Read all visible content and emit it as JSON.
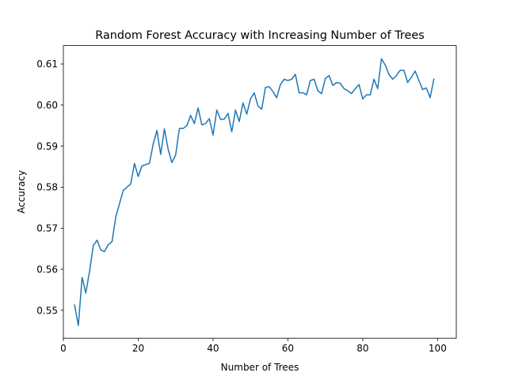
{
  "chart_data": {
    "type": "line",
    "title": "Random Forest Accuracy with Increasing Number of Trees",
    "xlabel": "Number of Trees",
    "ylabel": "Accuracy",
    "xlim": [
      0,
      105
    ],
    "ylim": [
      0.5432,
      0.6145
    ],
    "xticks": [
      0,
      20,
      40,
      60,
      80,
      100
    ],
    "yticks": [
      0.55,
      0.56,
      0.57,
      0.58,
      0.59,
      0.6,
      0.61
    ],
    "ytick_labels": [
      "0.55",
      "0.56",
      "0.57",
      "0.58",
      "0.59",
      "0.60",
      "0.61"
    ],
    "grid": false,
    "line_color": "#1f77b4",
    "x": [
      3,
      4,
      5,
      6,
      7,
      8,
      9,
      10,
      11,
      12,
      13,
      14,
      15,
      16,
      17,
      18,
      19,
      20,
      21,
      22,
      23,
      24,
      25,
      26,
      27,
      28,
      29,
      30,
      31,
      32,
      33,
      34,
      35,
      36,
      37,
      38,
      39,
      40,
      41,
      42,
      43,
      44,
      45,
      46,
      47,
      48,
      49,
      50,
      51,
      52,
      53,
      54,
      55,
      56,
      57,
      58,
      59,
      60,
      61,
      62,
      63,
      64,
      65,
      66,
      67,
      68,
      69,
      70,
      71,
      72,
      73,
      74,
      75,
      76,
      77,
      78,
      79,
      80,
      81,
      82,
      83,
      84,
      85,
      86,
      87,
      88,
      89,
      90,
      91,
      92,
      93,
      94,
      95,
      96,
      97,
      98,
      99
    ],
    "y": [
      0.5513,
      0.5463,
      0.558,
      0.5542,
      0.5595,
      0.5658,
      0.5671,
      0.5647,
      0.5643,
      0.566,
      0.5667,
      0.5727,
      0.576,
      0.5792,
      0.58,
      0.5808,
      0.5858,
      0.5826,
      0.5852,
      0.5855,
      0.5858,
      0.5905,
      0.5938,
      0.588,
      0.5942,
      0.5892,
      0.586,
      0.5878,
      0.5943,
      0.5943,
      0.595,
      0.5975,
      0.5955,
      0.5993,
      0.5952,
      0.5955,
      0.5967,
      0.5927,
      0.5988,
      0.5965,
      0.5966,
      0.598,
      0.5935,
      0.5988,
      0.596,
      0.6005,
      0.5978,
      0.6015,
      0.603,
      0.5998,
      0.599,
      0.6043,
      0.6045,
      0.6033,
      0.6018,
      0.605,
      0.6063,
      0.606,
      0.6063,
      0.6075,
      0.603,
      0.603,
      0.6025,
      0.606,
      0.6063,
      0.6035,
      0.6028,
      0.6065,
      0.6072,
      0.6048,
      0.6055,
      0.6053,
      0.604,
      0.6035,
      0.6028,
      0.604,
      0.605,
      0.6015,
      0.6025,
      0.6025,
      0.6063,
      0.604,
      0.6113,
      0.6098,
      0.6075,
      0.6063,
      0.6072,
      0.6085,
      0.6085,
      0.6055,
      0.6068,
      0.6083,
      0.606,
      0.6038,
      0.6042,
      0.6018,
      0.6063
    ]
  }
}
